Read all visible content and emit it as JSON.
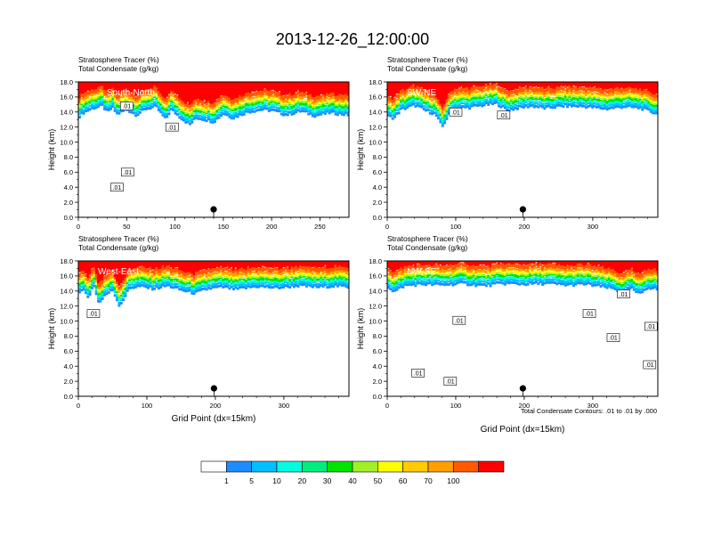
{
  "title": "2013-12-26_12:00:00",
  "panel_subtitle_1": "Stratosphere Tracer   (%)",
  "panel_subtitle_2": "Total Condensate   (g/kg)",
  "contour_note": "Total Condensate Contours: .01 to .01 by .000",
  "colors": [
    "#ffffff",
    "#1e8cff",
    "#00bfff",
    "#00ffe0",
    "#00ee80",
    "#00e400",
    "#a0f028",
    "#ffff00",
    "#ffcc00",
    "#ffa000",
    "#ff5a00",
    "#ff0000"
  ],
  "colorbar_labels": [
    "1",
    "5",
    "10",
    "20",
    "30",
    "40",
    "50",
    "60",
    "70",
    "100"
  ],
  "chart_data": [
    {
      "type": "heatmap",
      "name": "South-North",
      "title_lines": [
        "Stratosphere Tracer   (%)",
        "Total Condensate   (g/kg)"
      ],
      "xlabel": "",
      "ylabel": "Height (km)",
      "xlim": [
        0,
        280
      ],
      "ylim": [
        0,
        18
      ],
      "xticks": [
        0,
        50,
        100,
        150,
        200,
        250
      ],
      "yticks": [
        0.0,
        2.0,
        4.0,
        6.0,
        8.0,
        10.0,
        12.0,
        14.0,
        16.0,
        18.0
      ],
      "marker_x": 140,
      "contour_labels": [
        {
          "text": ".01",
          "x": 50,
          "y": 14.8
        },
        {
          "text": ".01",
          "x": 97,
          "y": 12.0
        },
        {
          "text": ".01",
          "x": 51,
          "y": 6.0
        },
        {
          "text": ".01",
          "x": 40,
          "y": 4.0
        }
      ],
      "tracer_base": [
        [
          0,
          13.2
        ],
        [
          5,
          13.8
        ],
        [
          15,
          14.4
        ],
        [
          25,
          14.7
        ],
        [
          30,
          13.8
        ],
        [
          35,
          14.5
        ],
        [
          40,
          13.6
        ],
        [
          50,
          14.2
        ],
        [
          60,
          13.5
        ],
        [
          70,
          14.3
        ],
        [
          80,
          14.6
        ],
        [
          90,
          12.9
        ],
        [
          96,
          14.2
        ],
        [
          105,
          13.2
        ],
        [
          115,
          12.2
        ],
        [
          122,
          13.1
        ],
        [
          130,
          12.9
        ],
        [
          140,
          12.6
        ],
        [
          150,
          13.7
        ],
        [
          160,
          13.1
        ],
        [
          175,
          13.9
        ],
        [
          190,
          14.2
        ],
        [
          200,
          14.1
        ],
        [
          215,
          13.5
        ],
        [
          230,
          14.0
        ],
        [
          245,
          13.4
        ],
        [
          260,
          13.8
        ],
        [
          280,
          13.5
        ]
      ]
    },
    {
      "type": "heatmap",
      "name": "SW-NE",
      "title_lines": [
        "Stratosphere Tracer   (%)",
        "Total Condensate   (g/kg)"
      ],
      "xlabel": "",
      "ylabel": "Height (km)",
      "xlim": [
        0,
        395
      ],
      "ylim": [
        0,
        18
      ],
      "xticks": [
        0,
        100,
        200,
        300
      ],
      "yticks": [
        0.0,
        2.0,
        4.0,
        6.0,
        8.0,
        10.0,
        12.0,
        14.0,
        16.0,
        18.0
      ],
      "marker_x": 198,
      "contour_labels": [
        {
          "text": ".01",
          "x": 100,
          "y": 14.0
        },
        {
          "text": ".01",
          "x": 170,
          "y": 13.6
        }
      ],
      "tracer_base": [
        [
          0,
          13.3
        ],
        [
          10,
          13.1
        ],
        [
          20,
          14.2
        ],
        [
          40,
          14.8
        ],
        [
          55,
          14.1
        ],
        [
          70,
          13.6
        ],
        [
          80,
          11.9
        ],
        [
          95,
          14.4
        ],
        [
          120,
          14.5
        ],
        [
          140,
          14.8
        ],
        [
          160,
          15.0
        ],
        [
          175,
          14.1
        ],
        [
          190,
          14.4
        ],
        [
          210,
          14.7
        ],
        [
          230,
          14.4
        ],
        [
          260,
          14.7
        ],
        [
          290,
          14.6
        ],
        [
          320,
          14.3
        ],
        [
          345,
          14.6
        ],
        [
          370,
          14.4
        ],
        [
          395,
          13.6
        ]
      ]
    },
    {
      "type": "heatmap",
      "name": "West-East",
      "title_lines": [
        "Stratosphere Tracer   (%)",
        "Total Condensate   (g/kg)"
      ],
      "xlabel": "Grid Point (dx=15km)",
      "ylabel": "Height (km)",
      "xlim": [
        0,
        395
      ],
      "ylim": [
        0,
        18
      ],
      "xticks": [
        0,
        100,
        200,
        300
      ],
      "yticks": [
        0.0,
        2.0,
        4.0,
        6.0,
        8.0,
        10.0,
        12.0,
        14.0,
        16.0,
        18.0
      ],
      "marker_x": 198,
      "contour_labels": [
        {
          "text": ".01",
          "x": 22,
          "y": 11.0
        }
      ],
      "tracer_base": [
        [
          0,
          13.6
        ],
        [
          8,
          13.9
        ],
        [
          15,
          13.1
        ],
        [
          22,
          14.7
        ],
        [
          30,
          12.2
        ],
        [
          38,
          13.3
        ],
        [
          50,
          14.0
        ],
        [
          60,
          11.9
        ],
        [
          75,
          14.3
        ],
        [
          90,
          14.5
        ],
        [
          110,
          14.2
        ],
        [
          130,
          14.6
        ],
        [
          150,
          14.0
        ],
        [
          170,
          13.6
        ],
        [
          190,
          14.2
        ],
        [
          210,
          14.4
        ],
        [
          230,
          14.1
        ],
        [
          260,
          14.5
        ],
        [
          290,
          14.3
        ],
        [
          320,
          14.6
        ],
        [
          350,
          14.4
        ],
        [
          375,
          14.6
        ],
        [
          395,
          14.4
        ]
      ]
    },
    {
      "type": "heatmap",
      "name": "NW-SE",
      "title_lines": [
        "Stratosphere Tracer   (%)",
        "Total Condensate   (g/kg)"
      ],
      "xlabel": "Grid Point (dx=15km)",
      "ylabel": "Height (km)",
      "xlim": [
        0,
        395
      ],
      "ylim": [
        0,
        18
      ],
      "xticks": [
        0,
        100,
        200,
        300
      ],
      "yticks": [
        0.0,
        2.0,
        4.0,
        6.0,
        8.0,
        10.0,
        12.0,
        14.0,
        16.0,
        18.0
      ],
      "marker_x": 198,
      "contour_labels": [
        {
          "text": ".01",
          "x": 345,
          "y": 13.6
        },
        {
          "text": ".01",
          "x": 105,
          "y": 10.1
        },
        {
          "text": ".01",
          "x": 295,
          "y": 11.0
        },
        {
          "text": ".01",
          "x": 385,
          "y": 9.3
        },
        {
          "text": ".01",
          "x": 330,
          "y": 7.8
        },
        {
          "text": ".01",
          "x": 45,
          "y": 3.1
        },
        {
          "text": ".01",
          "x": 92,
          "y": 2.0
        },
        {
          "text": ".01",
          "x": 383,
          "y": 4.2
        }
      ],
      "tracer_base": [
        [
          0,
          14.5
        ],
        [
          10,
          13.8
        ],
        [
          25,
          14.6
        ],
        [
          50,
          14.8
        ],
        [
          80,
          14.7
        ],
        [
          110,
          14.9
        ],
        [
          140,
          14.6
        ],
        [
          170,
          14.9
        ],
        [
          200,
          14.8
        ],
        [
          230,
          14.9
        ],
        [
          260,
          14.7
        ],
        [
          290,
          14.8
        ],
        [
          310,
          14.5
        ],
        [
          330,
          14.2
        ],
        [
          345,
          13.6
        ],
        [
          355,
          14.3
        ],
        [
          368,
          13.4
        ],
        [
          380,
          14.4
        ],
        [
          395,
          14.1
        ]
      ]
    }
  ]
}
